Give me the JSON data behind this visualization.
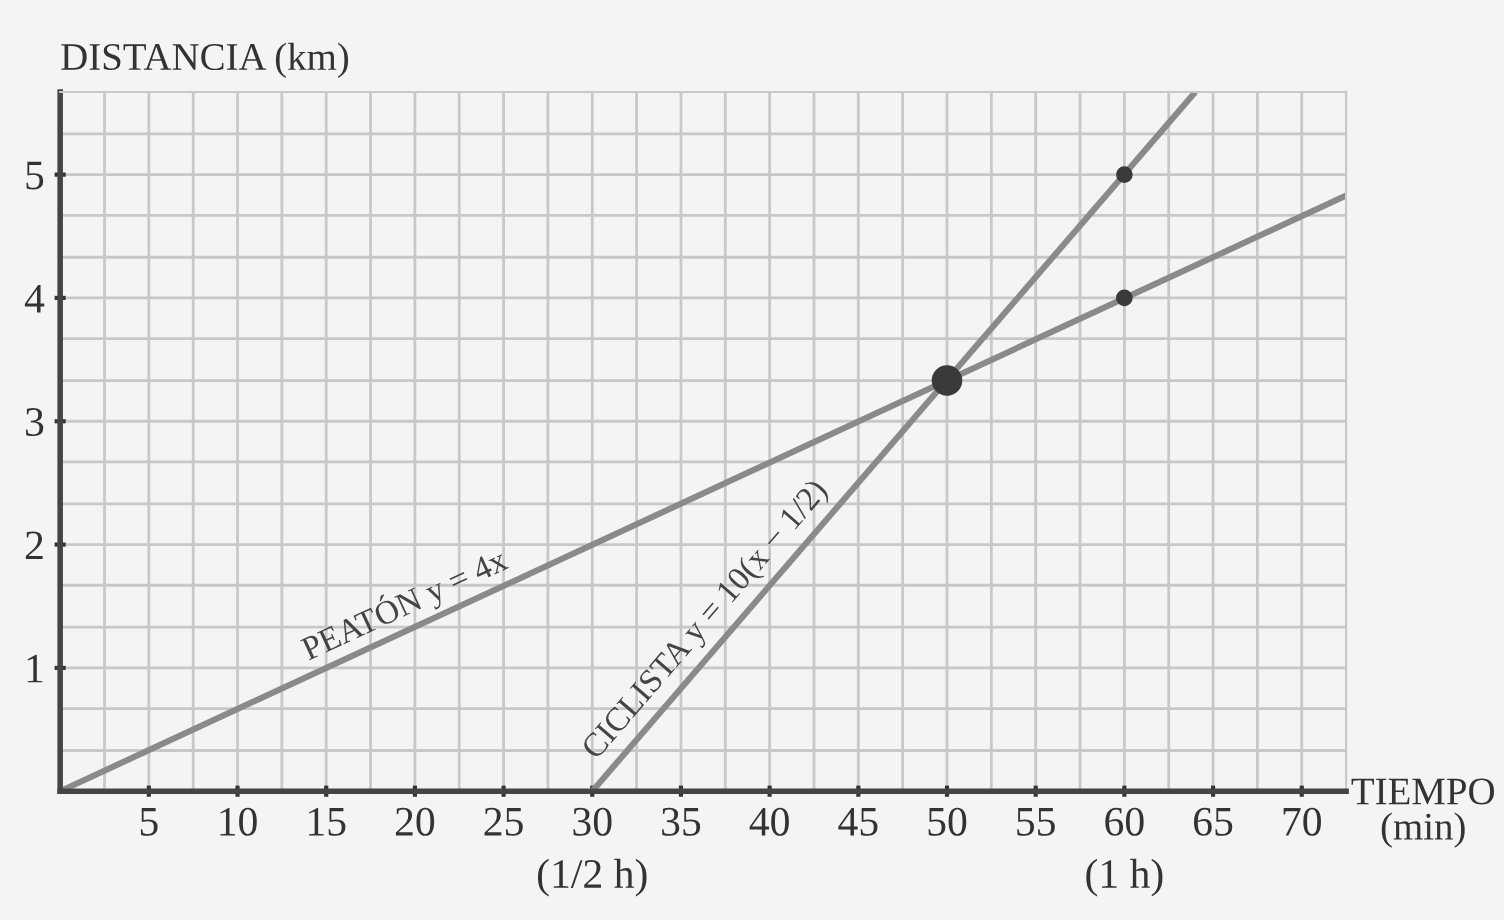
{
  "chart_data": {
    "type": "line",
    "xlabel": "TIEMPO\n(min)",
    "ylabel": "DISTANCIA (km)",
    "xlim": [
      0,
      72.5
    ],
    "ylim": [
      0,
      5.67
    ],
    "xticks": [
      {
        "value": 2.5,
        "label": null
      },
      5,
      {
        "value": 7.5,
        "label": null
      },
      10,
      {
        "value": 12.5,
        "label": null
      },
      15,
      {
        "value": 17.5,
        "label": null
      },
      20,
      {
        "value": 22.5,
        "label": null
      },
      25,
      {
        "value": 27.5,
        "label": null
      },
      {
        "value": 30,
        "label": "30\n(1/2 h)"
      },
      {
        "value": 32.5,
        "label": null
      },
      35,
      {
        "value": 37.5,
        "label": null
      },
      40,
      {
        "value": 42.5,
        "label": null
      },
      45,
      {
        "value": 47.5,
        "label": null
      },
      50,
      {
        "value": 52.5,
        "label": null
      },
      55,
      {
        "value": 57.5,
        "label": null
      },
      {
        "value": 60,
        "label": "60\n(1 h)"
      },
      {
        "value": 62.5,
        "label": null
      },
      65,
      {
        "value": 67.5,
        "label": null
      },
      70
    ],
    "yticks": [
      {
        "value": 0.33,
        "label": null
      },
      {
        "value": 0.67,
        "label": null
      },
      1,
      {
        "value": 1.33,
        "label": null
      },
      {
        "value": 1.67,
        "label": null
      },
      2,
      {
        "value": 2.33,
        "label": null
      },
      {
        "value": 2.67,
        "label": null
      },
      3,
      {
        "value": 3.33,
        "label": null
      },
      {
        "value": 3.67,
        "label": null
      },
      4,
      {
        "value": 4.33,
        "label": null
      },
      {
        "value": 4.67,
        "label": null
      },
      5,
      {
        "value": 5.33,
        "label": null
      }
    ],
    "grid": true,
    "series": [
      {
        "color": "#8a8a8a",
        "x": [
          0,
          72.5
        ],
        "values": [
          0,
          4.83
        ]
      },
      {
        "color": "#8a8a8a",
        "x": [
          30,
          64
        ],
        "values": [
          0,
          5.67
        ]
      },
      {
        "type": "scatter",
        "color": "#3a3a3a",
        "x": [
          50
        ],
        "values": [
          3.33
        ]
      },
      {
        "type": "scatter",
        "color": "#3a3a3a",
        "x": [
          60,
          60
        ],
        "values": [
          5,
          4
        ]
      }
    ],
    "annotations": [
      {
        "text": "PEATÓN y = 4x",
        "x": 20,
        "y": 1.33
      },
      {
        "text": "CICLISTA y = 10(x − 1/2)",
        "x": 37.5,
        "y": 1.25
      }
    ]
  }
}
